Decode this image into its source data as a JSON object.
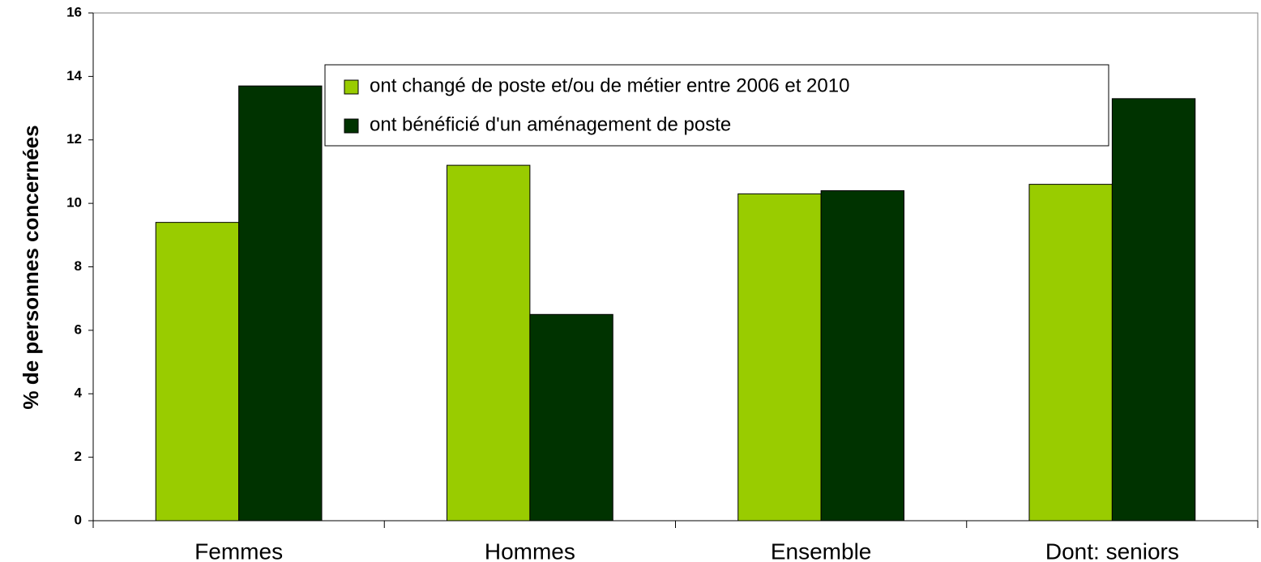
{
  "chart_data": {
    "type": "bar",
    "y_label": "% de personnes concernées",
    "categories": [
      "Femmes",
      "Hommes",
      "Ensemble",
      "Dont: seniors"
    ],
    "series": [
      {
        "name": "ont changé de poste et/ou de métier entre 2006 et 2010",
        "color": "#99cc00",
        "values": [
          9.4,
          11.2,
          10.3,
          10.6
        ]
      },
      {
        "name": "ont bénéficié d'un aménagement de poste",
        "color": "#003300",
        "values": [
          13.7,
          6.5,
          10.4,
          13.3
        ]
      }
    ],
    "ylim": [
      0,
      16
    ],
    "yticks": [
      0,
      2,
      4,
      6,
      8,
      10,
      12,
      14,
      16
    ],
    "grid": false,
    "legend": "top"
  }
}
